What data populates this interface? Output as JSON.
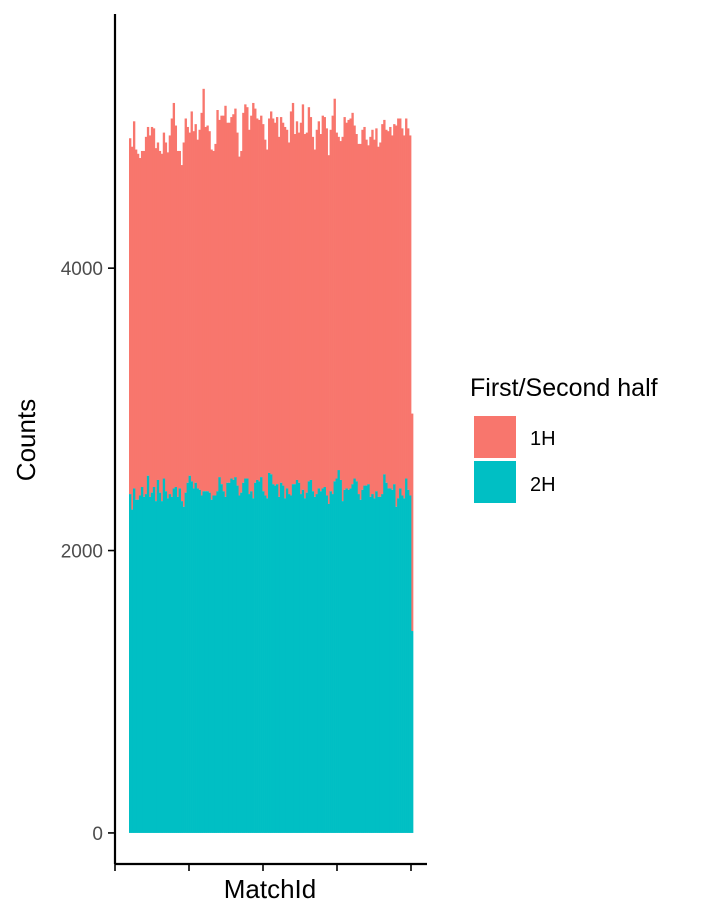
{
  "chart_data": {
    "type": "bar",
    "stacked": true,
    "xlabel": "MatchId",
    "ylabel": "Counts",
    "ylim": [
      -220,
      5800
    ],
    "yticks": [
      0,
      2000,
      4000
    ],
    "ytick_labels": [
      "0",
      "2000",
      "4000"
    ],
    "grid": false,
    "legend": {
      "title": "First/Second half",
      "position": "right"
    },
    "series": [
      {
        "name": "1H",
        "color": "#F8766D",
        "values": [
          2520,
          2570,
          2600,
          2480,
          2450,
          2390,
          2380,
          2450,
          2530,
          2470,
          2560,
          2590,
          2540,
          2500,
          2390,
          2420,
          2460,
          2450,
          2470,
          2450,
          2540,
          2680,
          2730,
          2560,
          2450,
          2390,
          2380,
          2580,
          2650,
          2520,
          2430,
          2620,
          2530,
          2540,
          2470,
          2550,
          2710,
          2850,
          2580,
          2590,
          2560,
          2480,
          2440,
          2490,
          2700,
          2530,
          2610,
          2660,
          2770,
          2550,
          2550,
          2560,
          2590,
          2610,
          2500,
          2400,
          2420,
          2620,
          2650,
          2630,
          2580,
          2660,
          2800,
          2650,
          2560,
          2560,
          2560,
          2600,
          2520,
          2470,
          2510,
          2570,
          2590,
          2570,
          2600,
          2550,
          2590,
          2570,
          2630,
          2540,
          2490,
          2720,
          2700,
          2480,
          2540,
          2480,
          2630,
          2730,
          2580,
          2550,
          2650,
          2570,
          2510,
          2460,
          2580,
          2600,
          2530,
          2640,
          2620,
          2600,
          2470,
          2560,
          2680,
          2710,
          2450,
          2360,
          2400,
          2580,
          2640,
          2590,
          2620,
          2620,
          2630,
          2500,
          2460,
          2480,
          2520,
          2550,
          2540,
          2450,
          2400,
          2550,
          2580,
          2540,
          2570,
          2480,
          2510,
          2620,
          2510,
          2500,
          2530,
          2560,
          2510,
          2550,
          2700,
          2690,
          2620,
          2600,
          2570,
          2550,
          2560,
          2550,
          1540
        ],
        "sample_every_bar": true
      },
      {
        "name": "2H",
        "color": "#00BFC4",
        "values": [
          2400,
          2290,
          2440,
          2360,
          2360,
          2390,
          2450,
          2380,
          2400,
          2530,
          2380,
          2410,
          2450,
          2350,
          2500,
          2410,
          2350,
          2510,
          2420,
          2370,
          2400,
          2380,
          2440,
          2450,
          2380,
          2440,
          2350,
          2310,
          2410,
          2480,
          2530,
          2490,
          2440,
          2480,
          2440,
          2430,
          2390,
          2420,
          2420,
          2420,
          2410,
          2360,
          2390,
          2390,
          2420,
          2520,
          2470,
          2420,
          2380,
          2480,
          2480,
          2510,
          2500,
          2520,
          2460,
          2390,
          2410,
          2480,
          2510,
          2510,
          2400,
          2420,
          2370,
          2480,
          2500,
          2490,
          2520,
          2420,
          2390,
          2370,
          2550,
          2540,
          2470,
          2460,
          2470,
          2380,
          2480,
          2460,
          2370,
          2440,
          2400,
          2390,
          2470,
          2470,
          2500,
          2480,
          2400,
          2430,
          2370,
          2410,
          2490,
          2500,
          2420,
          2380,
          2400,
          2440,
          2420,
          2440,
          2450,
          2390,
          2330,
          2420,
          2400,
          2490,
          2510,
          2570,
          2500,
          2350,
          2430,
          2440,
          2430,
          2440,
          2470,
          2510,
          2490,
          2400,
          2360,
          2430,
          2460,
          2460,
          2470,
          2380,
          2400,
          2370,
          2420,
          2380,
          2380,
          2400,
          2540,
          2480,
          2440,
          2440,
          2430,
          2470,
          2310,
          2370,
          2440,
          2390,
          2370,
          2510,
          2430,
          2390,
          1430
        ]
      }
    ],
    "n_bars": 143
  }
}
